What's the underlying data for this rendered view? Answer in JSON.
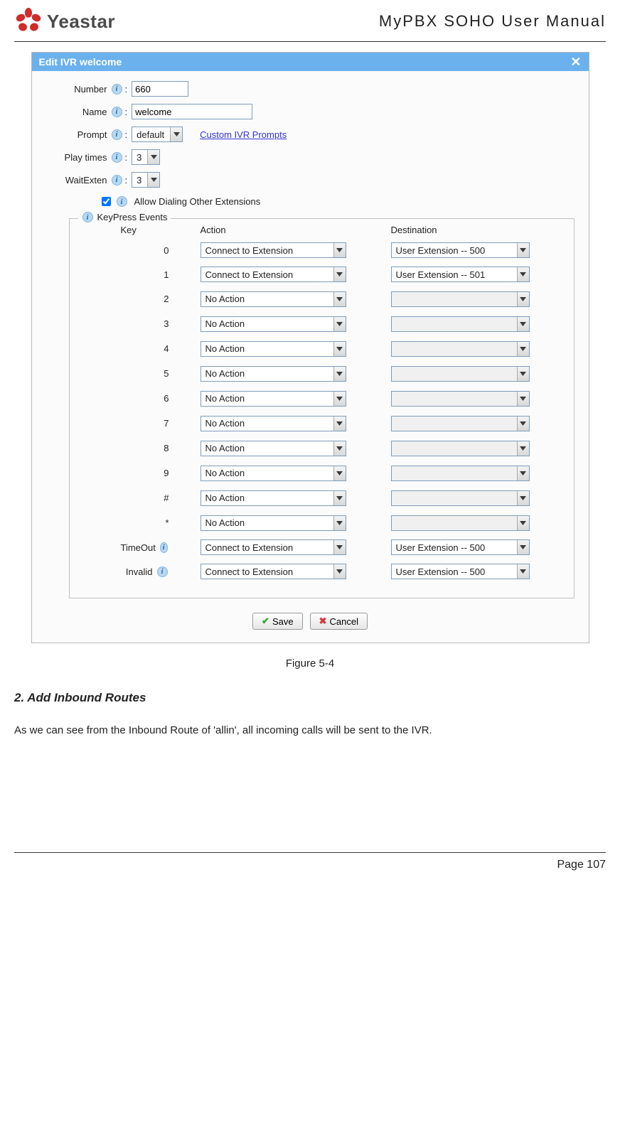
{
  "header": {
    "brand": "Yeastar",
    "manual_title": "MyPBX SOHO User Manual",
    "logo_red": "#cf2c2a"
  },
  "window": {
    "title": "Edit IVR welcome",
    "title_bar_bg": "#6bb1ed",
    "fields": {
      "number_label": "Number",
      "number_value": "660",
      "name_label": "Name",
      "name_value": "welcome",
      "prompt_label": "Prompt",
      "prompt_value": "default",
      "custom_prompts_link": "Custom IVR Prompts",
      "playtimes_label": "Play times",
      "playtimes_value": "3",
      "waitexten_label": "WaitExten",
      "waitexten_value": "3",
      "allow_dialing_label": "Allow Dialing Other Extensions",
      "allow_dialing_checked": true
    },
    "keypress": {
      "legend": "KeyPress Events",
      "columns": {
        "key": "Key",
        "action": "Action",
        "destination": "Destination"
      },
      "rows": [
        {
          "key": "0",
          "action": "Connect to Extension",
          "destination": "User Extension -- 500",
          "dest_enabled": true,
          "has_info": false
        },
        {
          "key": "1",
          "action": "Connect to Extension",
          "destination": "User Extension -- 501",
          "dest_enabled": true,
          "has_info": false
        },
        {
          "key": "2",
          "action": "No Action",
          "destination": "",
          "dest_enabled": false,
          "has_info": false
        },
        {
          "key": "3",
          "action": "No Action",
          "destination": "",
          "dest_enabled": false,
          "has_info": false
        },
        {
          "key": "4",
          "action": "No Action",
          "destination": "",
          "dest_enabled": false,
          "has_info": false
        },
        {
          "key": "5",
          "action": "No Action",
          "destination": "",
          "dest_enabled": false,
          "has_info": false
        },
        {
          "key": "6",
          "action": "No Action",
          "destination": "",
          "dest_enabled": false,
          "has_info": false
        },
        {
          "key": "7",
          "action": "No Action",
          "destination": "",
          "dest_enabled": false,
          "has_info": false
        },
        {
          "key": "8",
          "action": "No Action",
          "destination": "",
          "dest_enabled": false,
          "has_info": false
        },
        {
          "key": "9",
          "action": "No Action",
          "destination": "",
          "dest_enabled": false,
          "has_info": false
        },
        {
          "key": "#",
          "action": "No Action",
          "destination": "",
          "dest_enabled": false,
          "has_info": false
        },
        {
          "key": "*",
          "action": "No Action",
          "destination": "",
          "dest_enabled": false,
          "has_info": false
        },
        {
          "key": "TimeOut",
          "action": "Connect to Extension",
          "destination": "User Extension -- 500",
          "dest_enabled": true,
          "has_info": true
        },
        {
          "key": "Invalid",
          "action": "Connect to Extension",
          "destination": "User Extension -- 500",
          "dest_enabled": true,
          "has_info": true
        }
      ]
    },
    "buttons": {
      "save": "Save",
      "cancel": "Cancel"
    }
  },
  "caption": "Figure 5-4",
  "section": {
    "heading": "2. Add Inbound Routes",
    "paragraph": "As we can see from the Inbound Route of 'allin', all incoming calls will be sent to the IVR."
  },
  "footer": {
    "page": "Page 107"
  }
}
